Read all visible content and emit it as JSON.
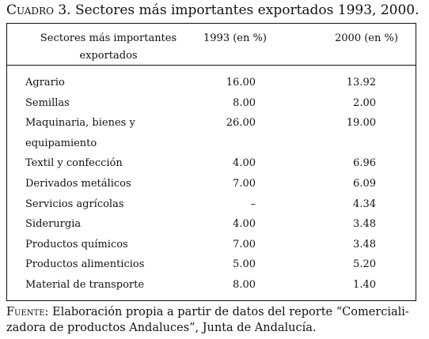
{
  "caption": {
    "label": "Cuadro 3.",
    "text": " Sectores más importantes exportados 1993, 2000."
  },
  "table": {
    "headers": {
      "sector_line1": "Sectores más importantes",
      "sector_line2": "exportados",
      "year1993": "1993  (en %)",
      "year2000": "2000 (en %)"
    },
    "rows": [
      {
        "label": "Agrario",
        "v1993": "16.00",
        "v2000": "13.92"
      },
      {
        "label": "Semillas",
        "v1993": "8.00",
        "v2000": "2.00"
      },
      {
        "label": "Maquinaria, bienes y",
        "label2": "equipamiento",
        "v1993": "26.00",
        "v2000": "19.00"
      },
      {
        "label": "Textil y confección",
        "v1993": "4.00",
        "v2000": "6.96"
      },
      {
        "label": "Derivados metálicos",
        "v1993": "7.00",
        "v2000": "6.09"
      },
      {
        "label": "Servicios agrícolas",
        "v1993": "–",
        "v2000": "4.34"
      },
      {
        "label": "Siderurgia",
        "v1993": "4.00",
        "v2000": "3.48"
      },
      {
        "label": "Productos químicos",
        "v1993": "7.00",
        "v2000": "3.48"
      },
      {
        "label": "Productos alimenticios",
        "v1993": "5.00",
        "v2000": "5.20"
      },
      {
        "label": "Material de transporte",
        "v1993": "8.00",
        "v2000": "1.40"
      }
    ]
  },
  "footnote": {
    "label": "Fuente:",
    "text": " Elaboración propia a partir de datos del reporte “Comerciali-zadora de productos Andaluces”, Junta de Andalucía."
  }
}
